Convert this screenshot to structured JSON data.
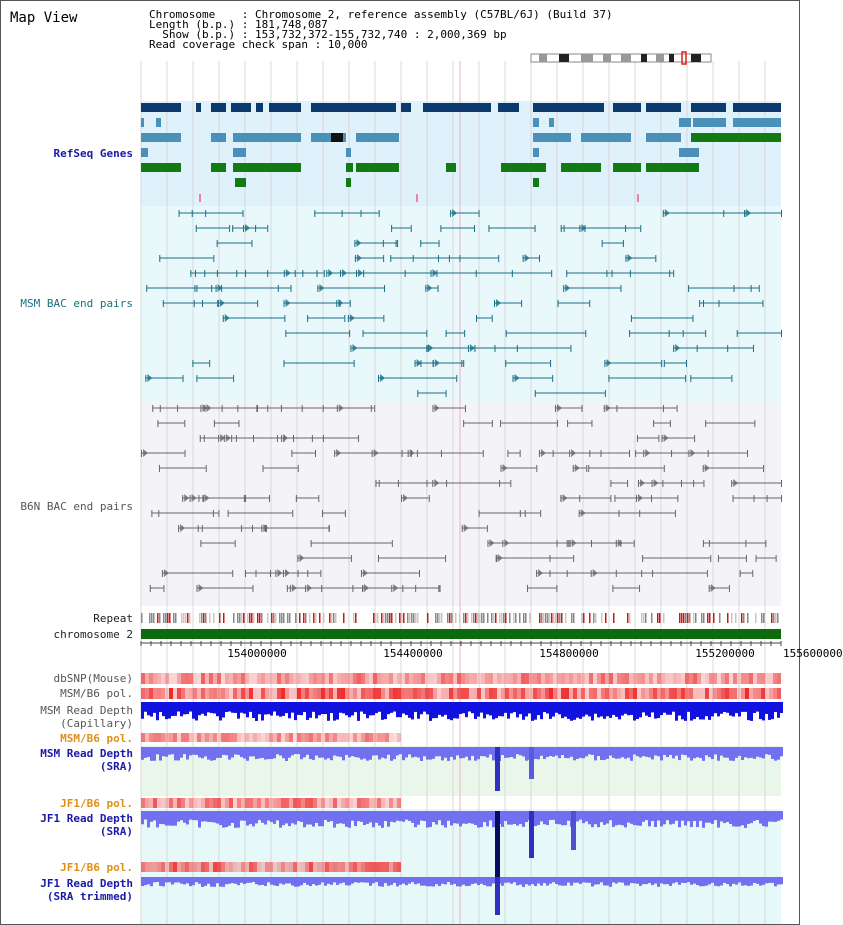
{
  "title": "Map View",
  "info": {
    "line1": "Chromosome    : Chromosome 2, reference assembly (C57BL/6J) (Build 37)",
    "line2": "Length (b.p.) : 181,748,087",
    "line3": "  Show (b.p.) : 153,732,372-155,732,740 : 2,000,369 bp",
    "line4": "Read coverage check span : 10,000"
  },
  "labels": {
    "refseq": "RefSeq Genes",
    "msm_bac": "MSM BAC end pairs",
    "b6n_bac": "B6N BAC end pairs",
    "repeat": "Repeat",
    "chromosome": "chromosome 2",
    "dbsnp": "dbSNP(Mouse)",
    "msm_b6_pol_1": "MSM/B6 pol.",
    "msm_depth_cap_1": "MSM Read Depth",
    "msm_depth_cap_2": "(Capillary)",
    "msm_b6_pol_2": "MSM/B6 pol.",
    "msm_depth_sra_1": "MSM Read Depth",
    "msm_depth_sra_2": "(SRA)",
    "jf1_b6_pol_1": "JF1/B6 pol.",
    "jf1_depth_sra_1": "JF1 Read Depth",
    "jf1_depth_sra_2": "(SRA)",
    "jf1_b6_pol_2": "JF1/B6 pol.",
    "jf1_depth_trim_1": "JF1 Read Depth",
    "jf1_depth_trim_2": "(SRA trimmed)"
  },
  "axis_ticks": [
    "154000000",
    "154400000",
    "154800000",
    "155200000",
    "155600000"
  ],
  "colors": {
    "refseq_bg": "#dff1fa",
    "msm_bg": "#e9f8fa",
    "b6n_bg": "#f4f4f8",
    "navy": "#0c3a6e",
    "steel": "#4a90b8",
    "green": "#137a13",
    "depth_blue": "#1212e0",
    "depth_light": "#7070f0",
    "snp_red": "#e81818"
  }
}
